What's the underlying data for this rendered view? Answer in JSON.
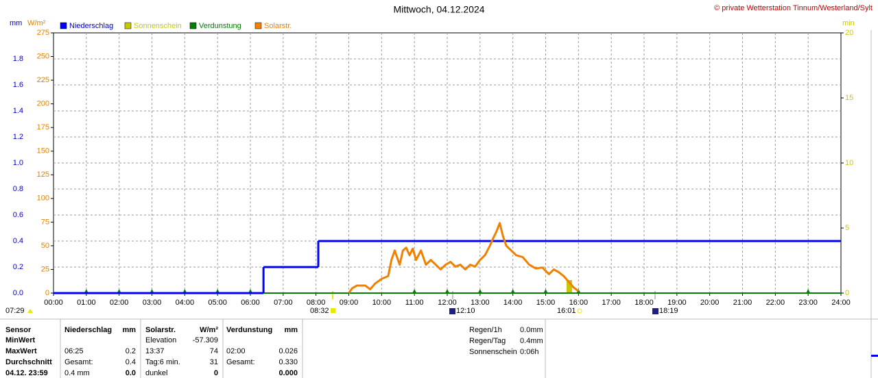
{
  "chart_data": {
    "type": "line",
    "title": "Mittwoch, 04.12.2024",
    "source": "© private Wetterstation Tinnum/Westerland/Sylt",
    "y_label": "mm",
    "y2_label": "W/m²",
    "y3_label": "min",
    "xlim": [
      0,
      24
    ],
    "xticks": [
      {
        "value": 0,
        "label": "00:00"
      },
      {
        "value": 1,
        "label": "01:00"
      },
      {
        "value": 2,
        "label": "02:00"
      },
      {
        "value": 3,
        "label": "03:00"
      },
      {
        "value": 4,
        "label": "04:00"
      },
      {
        "value": 5,
        "label": "05:00"
      },
      {
        "value": 6,
        "label": "06:00"
      },
      {
        "value": 7,
        "label": "07:00"
      },
      {
        "value": 8,
        "label": "08:00"
      },
      {
        "value": 9,
        "label": "09:00"
      },
      {
        "value": 10,
        "label": "10:00"
      },
      {
        "value": 11,
        "label": "11:00"
      },
      {
        "value": 12,
        "label": "12:00"
      },
      {
        "value": 13,
        "label": "13:00"
      },
      {
        "value": 14,
        "label": "14:00"
      },
      {
        "value": 15,
        "label": "15:00"
      },
      {
        "value": 16,
        "label": "16:00"
      },
      {
        "value": 17,
        "label": "17:00"
      },
      {
        "value": 18,
        "label": "18:00"
      },
      {
        "value": 19,
        "label": "19:00"
      },
      {
        "value": 20,
        "label": "20:00"
      },
      {
        "value": 21,
        "label": "21:00"
      },
      {
        "value": 22,
        "label": "22:00"
      },
      {
        "value": 23,
        "label": "23:00"
      },
      {
        "value": 24,
        "label": "24:00"
      }
    ],
    "ylim": [
      0,
      2
    ],
    "yticks": [
      {
        "value": 0,
        "label": "0.0"
      },
      0.2,
      0.4,
      0.6,
      0.8,
      {
        "value": 1,
        "label": "1.0"
      },
      1.2,
      1.4,
      1.6,
      1.8
    ],
    "y2lim": [
      0,
      275
    ],
    "y2ticks": [
      0,
      25,
      50,
      75,
      100,
      125,
      150,
      175,
      200,
      225,
      250,
      275
    ],
    "y3lim": [
      0,
      20
    ],
    "y3ticks": [
      0,
      5,
      10,
      15,
      20
    ],
    "grid": true,
    "series": [
      {
        "name": "Niederschlag",
        "type": "step",
        "axis": "y",
        "color": "#0000ff",
        "x": [
          0,
          6.4,
          8.07,
          24
        ],
        "values": [
          0,
          0.2,
          0.4,
          0.4
        ]
      },
      {
        "name": "Sonnenschein",
        "type": "bar",
        "axis": "y3",
        "color": "#c8c800",
        "x": [
          15.72
        ],
        "values": [
          1
        ]
      },
      {
        "name": "Verdunstung",
        "type": "line",
        "axis": "y",
        "color": "#008000",
        "x": [
          0,
          1,
          2,
          3,
          4,
          5,
          6,
          11,
          12,
          13,
          14,
          15,
          16,
          23,
          24
        ],
        "values": [
          0,
          0,
          0,
          0,
          0,
          0,
          0,
          0,
          0,
          0,
          0,
          0,
          0,
          0,
          0
        ]
      },
      {
        "name": "Solarstr.",
        "type": "line",
        "axis": "y2",
        "color": "#f08000",
        "x": [
          9.0,
          9.1,
          9.25,
          9.5,
          9.65,
          9.8,
          10.0,
          10.2,
          10.3,
          10.4,
          10.55,
          10.65,
          10.75,
          10.85,
          10.95,
          11.05,
          11.2,
          11.35,
          11.5,
          11.65,
          11.8,
          11.95,
          12.1,
          12.25,
          12.4,
          12.55,
          12.7,
          12.85,
          13.0,
          13.15,
          13.3,
          13.4,
          13.5,
          13.6,
          13.7,
          13.8,
          13.95,
          14.1,
          14.3,
          14.5,
          14.7,
          14.9,
          15.1,
          15.25,
          15.4,
          15.55,
          15.7,
          15.85,
          16.0
        ],
        "values": [
          0,
          5,
          8,
          8,
          4,
          10,
          15,
          18,
          35,
          45,
          30,
          45,
          48,
          40,
          47,
          35,
          45,
          30,
          35,
          30,
          25,
          30,
          33,
          28,
          30,
          25,
          30,
          28,
          35,
          40,
          50,
          58,
          65,
          74,
          60,
          50,
          45,
          40,
          38,
          30,
          26,
          27,
          20,
          25,
          22,
          18,
          12,
          6,
          2
        ]
      }
    ]
  },
  "event_times": [
    "07:29",
    "08:32",
    "12:10",
    "16:01",
    "18:19"
  ],
  "table": {
    "rows": [
      [
        "Sensor",
        "Niederschlag",
        "mm",
        "Solarstr.",
        "W/m²",
        "Verdunstung",
        "mm"
      ],
      [
        "MinWert",
        null,
        null,
        "Elevation",
        "-57.309",
        null,
        null
      ],
      [
        "MaxWert",
        "06:25",
        "0.2",
        "13:37",
        "74",
        "02:00",
        "0.026"
      ],
      [
        "Durchschnitt",
        "Gesamt:",
        "0.4",
        "Tag:6 min.",
        "31",
        "Gesamt:",
        "0.330"
      ],
      [
        "04.12. 23:59",
        "0.4 mm",
        "0.0",
        "dunkel",
        "0",
        null,
        "0.000"
      ]
    ]
  },
  "summary": {
    "rows": [
      [
        "Regen/1h",
        "0.0mm"
      ],
      [
        "Regen/Tag",
        "0.4mm"
      ],
      [
        "Sonnenschein",
        "0:06h"
      ]
    ]
  }
}
